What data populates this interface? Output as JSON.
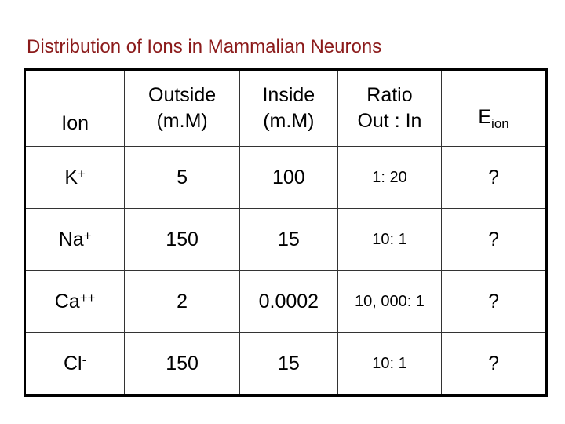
{
  "header": {
    "title": "Distribution of Ions in Mammalian Neurons"
  },
  "table": {
    "columns": {
      "ion": "Ion",
      "outside": [
        "Outside",
        "(m.M)"
      ],
      "inside": [
        "Inside",
        "(m.M)"
      ],
      "ratio": [
        "Ratio",
        "Out : In"
      ],
      "e": {
        "symbol": "E",
        "subscript": "ion"
      }
    },
    "rows": [
      {
        "ion": {
          "symbol": "K",
          "charge": "+"
        },
        "outside": "5",
        "inside": "100",
        "ratio": "1: 20",
        "e": "?"
      },
      {
        "ion": {
          "symbol": "Na",
          "charge": "+"
        },
        "outside": "150",
        "inside": "15",
        "ratio": "10: 1",
        "e": "?"
      },
      {
        "ion": {
          "symbol": "Ca",
          "charge": "++"
        },
        "outside": "2",
        "inside": "0.0002",
        "ratio": "10, 000: 1",
        "e": "?"
      },
      {
        "ion": {
          "symbol": "Cl",
          "charge": "-"
        },
        "outside": "150",
        "inside": "15",
        "ratio": "10: 1",
        "e": "?"
      }
    ]
  }
}
